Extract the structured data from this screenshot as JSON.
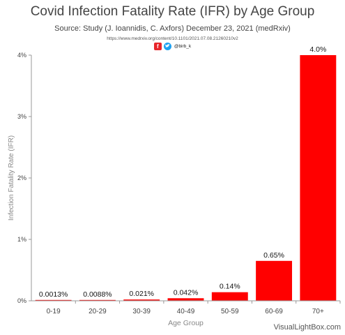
{
  "header": {
    "title": "Covid Infection Fatality Rate (IFR) by Age Group",
    "subtitle": "Source: Study (J. Ioannidis, C. Axfors) December 23, 2021 (medRxiv)",
    "url": "https://www.medrxiv.org/content/10.1101/2021.07.08.21260210v2",
    "handle": "@birb_k",
    "icons": [
      "facebook-icon",
      "twitter-icon"
    ]
  },
  "watermark": "VisualLightBox.com",
  "colors": {
    "bar": "#ff0000",
    "axis": "#999999",
    "label": "#888888"
  },
  "chart_data": {
    "type": "bar",
    "title": "Covid Infection Fatality Rate (IFR) by Age Group",
    "subtitle": "Source: Study (J. Ioannidis, C. Axfors) December 23, 2021 (medRxiv)",
    "xlabel": "Age Group",
    "ylabel": "Infection Fatality Rate (IFR)",
    "categories": [
      "0-19",
      "20-29",
      "30-39",
      "40-49",
      "50-59",
      "60-69",
      "70+"
    ],
    "values": [
      0.0013,
      0.0088,
      0.021,
      0.042,
      0.14,
      0.65,
      4.0
    ],
    "data_labels": [
      "0.0013%",
      "0.0088%",
      "0.021%",
      "0.042%",
      "0.14%",
      "0.65%",
      "4.0%"
    ],
    "ylim": [
      0,
      4
    ],
    "yticks": [
      0,
      1,
      2,
      3,
      4
    ],
    "ytick_labels": [
      "0%",
      "1%",
      "2%",
      "3%",
      "4%"
    ],
    "grid": false,
    "legend": "none"
  }
}
